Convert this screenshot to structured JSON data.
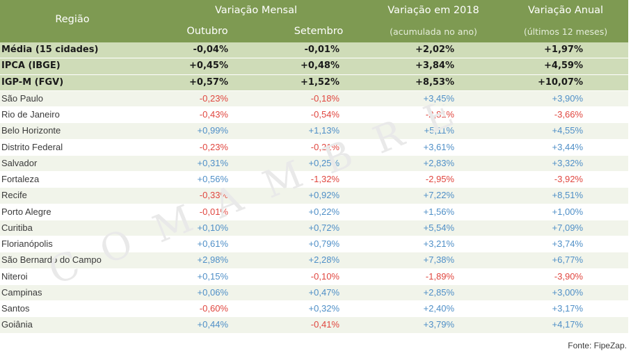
{
  "header": {
    "regiao": "Região",
    "variacao_mensal": "Variação Mensal",
    "outubro": "Outubro",
    "setembro": "Setembro",
    "variacao_2018": "Variação em 2018",
    "variacao_2018_sub": "(acumulada no ano)",
    "variacao_anual": "Variação Anual",
    "variacao_anual_sub": "(últimos 12 meses)"
  },
  "index_rows": [
    {
      "name": "Média (15 cidades)",
      "out": "-0,04%",
      "set": "-0,01%",
      "ano": "+2,02%",
      "anual": "+1,97%"
    },
    {
      "name": "IPCA (IBGE)",
      "out": "+0,45%",
      "set": "+0,48%",
      "ano": "+3,84%",
      "anual": "+4,59%"
    },
    {
      "name": "IGP-M (FGV)",
      "out": "+0,57%",
      "set": "+1,52%",
      "ano": "+8,53%",
      "anual": "+10,07%"
    }
  ],
  "city_rows": [
    {
      "name": "São Paulo",
      "out": "-0,23%",
      "set": "-0,18%",
      "ano": "+3,45%",
      "anual": "+3,90%"
    },
    {
      "name": "Rio de Janeiro",
      "out": "-0,43%",
      "set": "-0,54%",
      "ano": "-2,81%",
      "anual": "-3,66%"
    },
    {
      "name": "Belo Horizonte",
      "out": "+0,99%",
      "set": "+1,13%",
      "ano": "+5,11%",
      "anual": "+4,55%"
    },
    {
      "name": "Distrito Federal",
      "out": "-0,23%",
      "set": "-0,21%",
      "ano": "+3,61%",
      "anual": "+3,44%"
    },
    {
      "name": "Salvador",
      "out": "+0,31%",
      "set": "+0,25%",
      "ano": "+2,83%",
      "anual": "+3,32%"
    },
    {
      "name": "Fortaleza",
      "out": "+0,56%",
      "set": "-1,32%",
      "ano": "-2,95%",
      "anual": "-3,92%"
    },
    {
      "name": "Recife",
      "out": "-0,33%",
      "set": "+0,92%",
      "ano": "+7,22%",
      "anual": "+8,51%"
    },
    {
      "name": "Porto Alegre",
      "out": "-0,01%",
      "set": "+0,22%",
      "ano": "+1,56%",
      "anual": "+1,00%"
    },
    {
      "name": "Curitiba",
      "out": "+0,10%",
      "set": "+0,72%",
      "ano": "+5,54%",
      "anual": "+7,09%"
    },
    {
      "name": "Florianópolis",
      "out": "+0,61%",
      "set": "+0,79%",
      "ano": "+3,21%",
      "anual": "+3,74%"
    },
    {
      "name": "São Bernardo do Campo",
      "out": "+2,98%",
      "set": "+2,28%",
      "ano": "+7,38%",
      "anual": "+6,77%"
    },
    {
      "name": "Niteroi",
      "out": "+0,15%",
      "set": "-0,10%",
      "ano": "-1,89%",
      "anual": "-3,90%"
    },
    {
      "name": "Campinas",
      "out": "+0,06%",
      "set": "+0,47%",
      "ano": "+2,85%",
      "anual": "+3,00%"
    },
    {
      "name": "Santos",
      "out": "-0,60%",
      "set": "+0,32%",
      "ano": "+2,40%",
      "anual": "+3,17%"
    },
    {
      "name": "Goiânia",
      "out": "+0,44%",
      "set": "-0,41%",
      "ano": "+3,79%",
      "anual": "+4,17%"
    }
  ],
  "fonte": "Fonte: FipeZap.",
  "watermark": "COMAMBRE",
  "colors": {
    "header_bg": "#7e9a52",
    "index_row_bg": "#cfdcb8",
    "positive": "#4f8fc7",
    "negative": "#e0463f"
  }
}
